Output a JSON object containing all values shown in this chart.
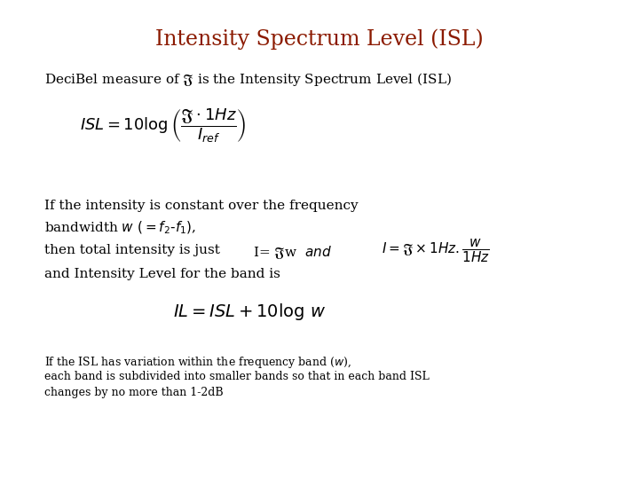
{
  "title": "Intensity Spectrum Level (ISL)",
  "title_color": "#8B1A00",
  "title_fontsize": 17,
  "background_color": "#ffffff",
  "text_color": "#000000",
  "line1": "DeciBel measure of $\\mathfrak{J}$ is the Intensity Spectrum Level (ISL)",
  "formula1": "$ISL = 10\\log\\left(\\dfrac{\\mathfrak{J}\\cdot 1Hz}{I_{ref}}\\right)$",
  "line2a": "If the intensity is constant over the frequency",
  "line2b": "bandwidth $w$ $(=f_2\\text{-}f_1)$,",
  "line3a": "then total intensity is just",
  "line3b": "I= $\\mathfrak{J}$w  $\\mathit{and}$",
  "formula2_rhs": "$I = \\mathfrak{J}\\times 1Hz.\\dfrac{w}{1Hz}$",
  "line4": "and Intensity Level for the band is",
  "formula3": "$IL = ISL + 10\\log\\, w$",
  "line5a": "If the ISL has variation within the frequency band ($w$),",
  "line5b": "each band is subdivided into smaller bands so that in each band ISL",
  "line5c": "changes by no more than 1-2dB",
  "main_fontsize": 11,
  "formula1_fontsize": 13,
  "formula3_fontsize": 14,
  "note_fontsize": 9
}
